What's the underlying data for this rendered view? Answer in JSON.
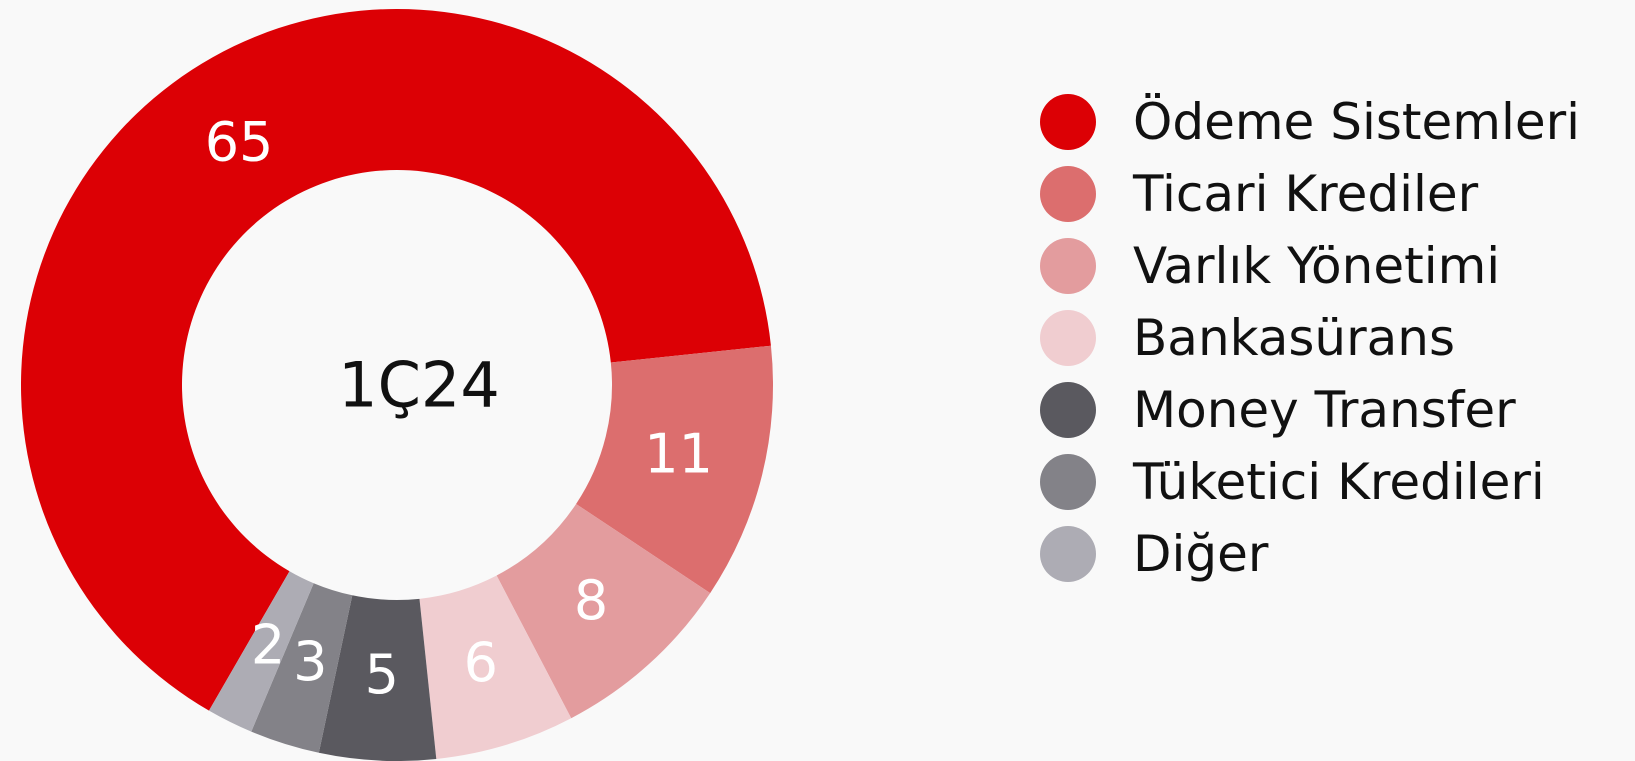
{
  "chart_data": {
    "type": "donut",
    "center_label": "1Ç24",
    "categories": [
      "Ödeme Sistemleri",
      "Ticari Krediler",
      "Varlık Yönetimi",
      "Bankasürans",
      "Money Transfer",
      "Tüketici Kredileri",
      "Diğer"
    ],
    "values": [
      65,
      11,
      8,
      6,
      5,
      3,
      2
    ],
    "colors": [
      "#dc0005",
      "#dc6e6e",
      "#e39c9e",
      "#f0cdd0",
      "#5a595f",
      "#838288",
      "#adacb4"
    ],
    "legend": "right"
  }
}
